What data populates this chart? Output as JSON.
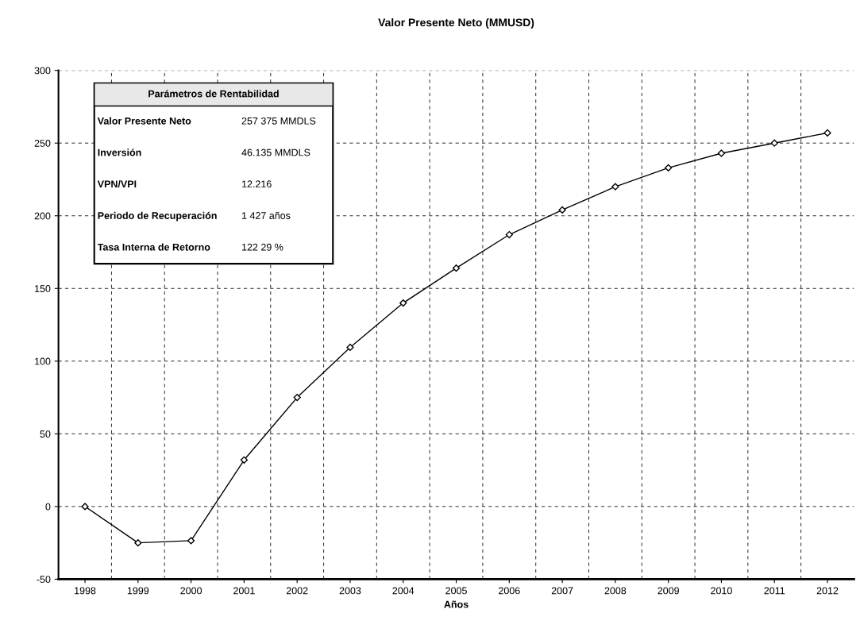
{
  "chart_data": {
    "type": "line",
    "title": "Valor Presente Neto (MMUSD)",
    "xlabel": "Años",
    "categories": [
      "1998",
      "1999",
      "2000",
      "2001",
      "2002",
      "2003",
      "2004",
      "2005",
      "2006",
      "2007",
      "2008",
      "2009",
      "2010",
      "2011",
      "2012"
    ],
    "series": [
      {
        "color": "#000000",
        "values": [
          0,
          -25,
          -23.5,
          32,
          75,
          109.5,
          140,
          164,
          187,
          204,
          220,
          233,
          243,
          250,
          257
        ]
      }
    ],
    "ylim": [
      -50,
      300
    ],
    "yticks": [
      -50,
      0,
      50,
      100,
      150,
      200,
      250,
      300
    ],
    "grid": true,
    "marker": "diamond",
    "line_style": "solid",
    "legend": false,
    "annotations": [
      "Parámetros de Rentabilidad",
      "Valor Presente Neto",
      "257 375 MMDLS",
      "Inversión",
      "46.135 MMDLS",
      "VPN/VPI",
      "12.216",
      "Periodo de Recuperación",
      "1 427 años",
      "Tasa Interna de Retorno",
      "122 29 %"
    ]
  }
}
